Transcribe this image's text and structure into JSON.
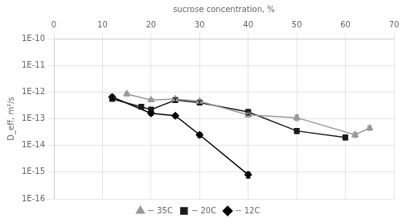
{
  "chart_data": {
    "type": "line",
    "xlabel": "sucrose concentration, %",
    "ylabel": "D_eff, m²/s",
    "log": "y",
    "xlim": [
      0,
      70
    ],
    "ylim": [
      1e-16,
      1e-10
    ],
    "xticks": [
      0,
      10,
      20,
      30,
      40,
      50,
      60,
      70
    ],
    "yticks": [
      {
        "value": 1e-16,
        "label": "1E-16"
      },
      {
        "value": 1e-15,
        "label": "1E-15"
      },
      {
        "value": 1e-14,
        "label": "1E-14"
      },
      {
        "value": 1e-13,
        "label": "1E-13"
      },
      {
        "value": 1e-12,
        "label": "1E-12"
      },
      {
        "value": 1e-11,
        "label": "1E-11"
      },
      {
        "value": 1e-10,
        "label": "1E-10"
      }
    ],
    "grid": true,
    "legend": "bottom",
    "series": [
      {
        "name": "− 35C",
        "color": "#999999",
        "marker": "triangle",
        "x": [
          15,
          20,
          25,
          30,
          40,
          50,
          62,
          65
        ],
        "values": [
          8.5e-13,
          5e-13,
          5.5e-13,
          4.5e-13,
          1.4e-13,
          1.1e-13,
          2.5e-14,
          4.5e-14
        ],
        "yerr_lo": [
          1.3e-13,
          7e-14,
          7e-14,
          7e-14,
          2.5e-14,
          2.5e-14,
          5e-15,
          8e-15
        ],
        "yerr_hi": [
          1.3e-13,
          7e-14,
          7e-14,
          7e-14,
          2.5e-14,
          2.5e-14,
          5e-15,
          8e-15
        ]
      },
      {
        "name": "− 20C",
        "color": "#1a1a1a",
        "marker": "square",
        "x": [
          12,
          18,
          20,
          25,
          30,
          40,
          50,
          60
        ],
        "values": [
          5.5e-13,
          2.8e-13,
          2.2e-13,
          5e-13,
          4e-13,
          1.8e-13,
          3.5e-14,
          2e-14
        ],
        "yerr_lo": [
          8e-14,
          5e-14,
          4e-14,
          9e-14,
          7e-14,
          4e-14,
          7e-15,
          4e-15
        ],
        "yerr_hi": [
          8e-14,
          5e-14,
          4e-14,
          9e-14,
          7e-14,
          4e-14,
          7e-15,
          4e-15
        ]
      },
      {
        "name": "− 12C",
        "color": "#000000",
        "marker": "diamond",
        "x": [
          12,
          20,
          25,
          30,
          40
        ],
        "values": [
          6.5e-13,
          1.6e-13,
          1.3e-13,
          2.5e-14,
          8e-16
        ],
        "yerr_lo": [
          1.2e-13,
          2.5e-14,
          2e-14,
          5e-15,
          2e-16
        ],
        "yerr_hi": [
          1.2e-13,
          2.5e-14,
          2e-14,
          5e-15,
          2e-16
        ]
      }
    ]
  }
}
